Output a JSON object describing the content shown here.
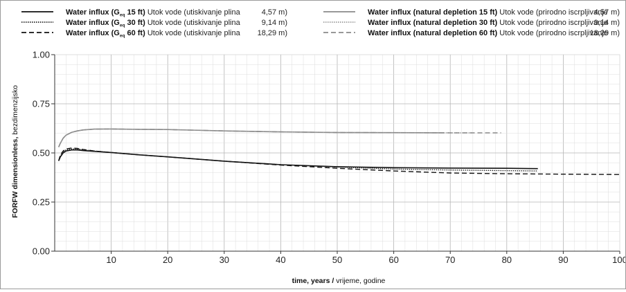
{
  "chart_data": {
    "type": "line",
    "title": "",
    "xlabel_bold": "time, years /",
    "xlabel_normal": " vrijeme, godine",
    "ylabel_bold": "FORFW dimensionless,",
    "ylabel_normal": " bezdimenzijsko",
    "xlim": [
      0,
      100
    ],
    "ylim": [
      0,
      1
    ],
    "x_ticks": [
      "10",
      "20",
      "30",
      "40",
      "50",
      "60",
      "70",
      "80",
      "90",
      "100"
    ],
    "y_ticks": [
      "0.00",
      "0.25",
      "0.50",
      "0.75",
      "1.00"
    ],
    "grid": true,
    "legend_position": "top",
    "series": [
      {
        "name": "Water influx (Geq 15 ft)",
        "legend_bold_a": "Water influx (G",
        "legend_sub": "eq",
        "legend_bold_b": " 15 ft)",
        "legend_normal": " Utok vode (utiskivanje plina",
        "legend_value": "4,57 m)",
        "color": "#111111",
        "style": "solid",
        "x": [
          0.7,
          1,
          1.5,
          2,
          3,
          4,
          5,
          7,
          10,
          15,
          20,
          30,
          40,
          50,
          60,
          70,
          80,
          85.5
        ],
        "y": [
          0.46,
          0.48,
          0.5,
          0.51,
          0.515,
          0.515,
          0.512,
          0.508,
          0.502,
          0.49,
          0.48,
          0.458,
          0.44,
          0.43,
          0.425,
          0.423,
          0.422,
          0.42
        ]
      },
      {
        "name": "Water influx (Geq 30 ft)",
        "legend_bold_a": "Water influx (G",
        "legend_sub": "eq",
        "legend_bold_b": " 30 ft)",
        "legend_normal": " Utok vode (utiskivanje plina",
        "legend_value": "9,14 m)",
        "color": "#222222",
        "style": "dotted",
        "x": [
          0.7,
          1,
          1.5,
          2,
          3,
          4,
          5,
          7,
          10,
          15,
          20,
          30,
          40,
          50,
          60,
          70,
          80,
          85.5
        ],
        "y": [
          0.46,
          0.485,
          0.505,
          0.515,
          0.52,
          0.52,
          0.516,
          0.51,
          0.502,
          0.49,
          0.48,
          0.458,
          0.44,
          0.428,
          0.418,
          0.413,
          0.41,
          0.408
        ]
      },
      {
        "name": "Water influx (Geq 60 ft)",
        "legend_bold_a": "Water influx (G",
        "legend_sub": "eq",
        "legend_bold_b": " 60 ft)",
        "legend_normal": " Utok vode (utiskivanje plina",
        "legend_value": "18,29 m)",
        "color": "#111111",
        "style": "dashed",
        "x": [
          0.7,
          1,
          1.5,
          2,
          3,
          4,
          5,
          7,
          10,
          15,
          20,
          30,
          40,
          50,
          60,
          70,
          80,
          90,
          100
        ],
        "y": [
          0.46,
          0.49,
          0.51,
          0.52,
          0.525,
          0.523,
          0.518,
          0.51,
          0.502,
          0.49,
          0.48,
          0.458,
          0.438,
          0.422,
          0.408,
          0.398,
          0.394,
          0.392,
          0.39
        ]
      },
      {
        "name": "Water influx (natural depletion 15 ft)",
        "legend_bold_a": "Water influx (natural depletion 15 ft)",
        "legend_sub": "",
        "legend_bold_b": "",
        "legend_normal": " Utok vode  (prirodno iscrpljivanje",
        "legend_value": "4,57 m)",
        "color": "#8a8a8a",
        "style": "solid",
        "x": [
          0.7,
          1,
          1.5,
          2,
          3,
          4,
          5,
          7,
          10,
          15,
          20,
          30,
          40,
          50,
          60,
          69
        ],
        "y": [
          0.53,
          0.55,
          0.575,
          0.59,
          0.605,
          0.612,
          0.617,
          0.621,
          0.622,
          0.62,
          0.619,
          0.612,
          0.607,
          0.604,
          0.603,
          0.602
        ]
      },
      {
        "name": "Water influx (natural depletion 30 ft)",
        "legend_bold_a": "Water influx (natural depletion 30 ft)",
        "legend_sub": "",
        "legend_bold_b": "",
        "legend_normal": " Utok vode  (prirodno iscrpljivanje",
        "legend_value": "9,14 m)",
        "color": "#9a9a9a",
        "style": "dotted",
        "x": [
          0.7,
          1,
          1.5,
          2,
          3,
          4,
          5,
          7,
          10,
          15,
          20,
          30,
          40,
          50,
          60,
          70,
          74
        ],
        "y": [
          0.53,
          0.55,
          0.575,
          0.59,
          0.605,
          0.612,
          0.617,
          0.621,
          0.622,
          0.62,
          0.619,
          0.612,
          0.607,
          0.604,
          0.603,
          0.602,
          0.602
        ]
      },
      {
        "name": "Water influx (natural depletion 60 ft)",
        "legend_bold_a": "Water influx (natural depletion 60 ft)",
        "legend_sub": "",
        "legend_bold_b": "",
        "legend_normal": " Utok vode  (prirodno iscrpljivanje",
        "legend_value": "18,29 m)",
        "color": "#8a8a8a",
        "style": "dashed",
        "x": [
          0.7,
          1,
          1.5,
          2,
          3,
          4,
          5,
          7,
          10,
          15,
          20,
          30,
          40,
          50,
          60,
          70,
          79
        ],
        "y": [
          0.53,
          0.55,
          0.575,
          0.59,
          0.605,
          0.612,
          0.617,
          0.621,
          0.622,
          0.62,
          0.619,
          0.612,
          0.607,
          0.604,
          0.603,
          0.602,
          0.602
        ]
      }
    ]
  }
}
